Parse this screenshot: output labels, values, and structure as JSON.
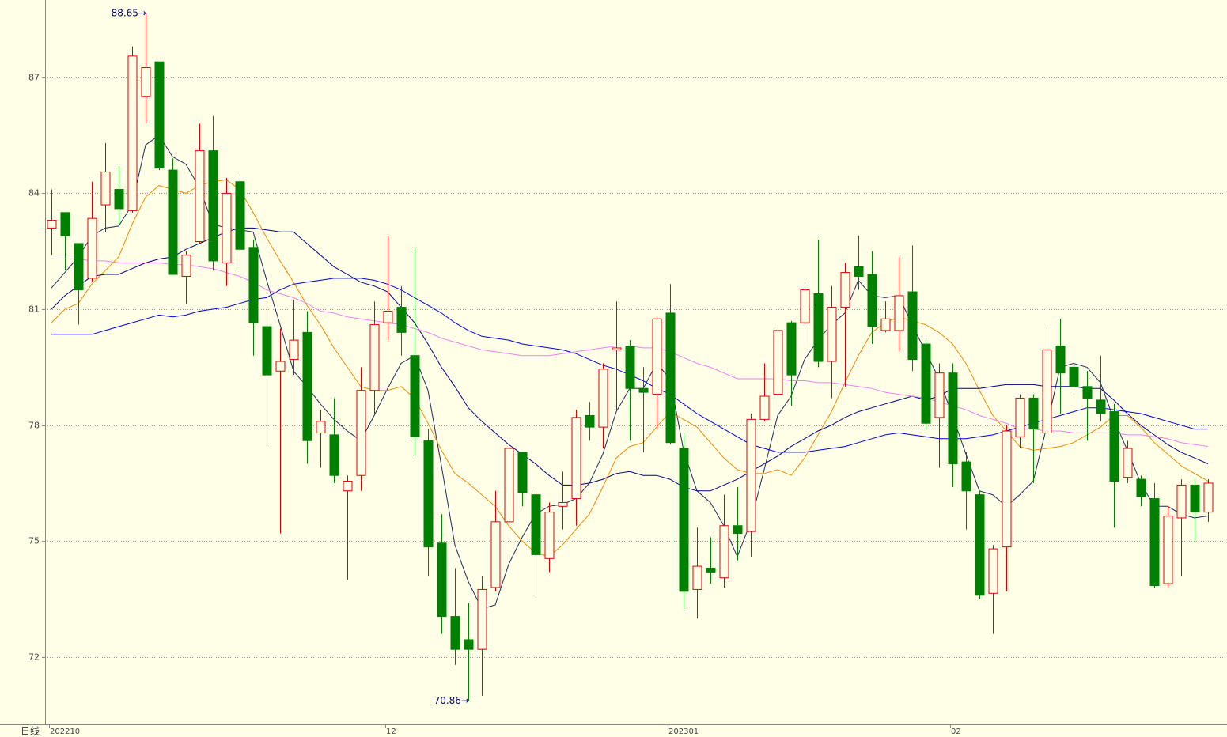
{
  "chart_data": {
    "type": "candlestick",
    "period_label": "日线",
    "categories": [
      "202210",
      null,
      null,
      null,
      null,
      null,
      null,
      null,
      null,
      null,
      null,
      null,
      null,
      null,
      null,
      null,
      null,
      null,
      null,
      null,
      null,
      null,
      null,
      null,
      null,
      "12",
      null,
      null,
      null,
      null,
      null,
      null,
      null,
      null,
      null,
      null,
      null,
      null,
      null,
      null,
      null,
      null,
      null,
      null,
      null,
      null,
      "202301",
      null,
      null,
      null,
      null,
      null,
      null,
      null,
      null,
      null,
      null,
      null,
      null,
      null,
      null,
      null,
      null,
      null,
      null,
      null,
      null,
      "02",
      null,
      null,
      null,
      null,
      null,
      null,
      null,
      null,
      null,
      null,
      null,
      null,
      null,
      null,
      null,
      null,
      null,
      null,
      null
    ],
    "open": [
      83.1,
      83.5,
      82.7,
      81.8,
      83.7,
      84.1,
      83.55,
      86.5,
      87.4,
      84.6,
      81.85,
      82.75,
      85.1,
      82.2,
      84.3,
      82.6,
      80.55,
      79.4,
      79.7,
      80.4,
      77.8,
      77.75,
      76.3,
      76.7,
      78.9,
      80.65,
      81.05,
      79.8,
      77.6,
      74.95,
      73.05,
      72.45,
      72.2,
      73.8,
      75.5,
      77.3,
      76.2,
      74.55,
      75.9,
      76.1,
      78.25,
      77.95,
      79.95,
      80.05,
      78.95,
      78.8,
      80.9,
      77.4,
      73.75,
      74.3,
      74.05,
      75.4,
      75.25,
      78.15,
      78.8,
      80.65,
      80.65,
      81.4,
      79.65,
      81.05,
      82.1,
      81.9,
      80.45,
      80.45,
      81.45,
      80.1,
      78.2,
      79.35,
      77.05,
      76.2,
      73.65,
      74.85,
      77.7,
      78.7,
      77.8,
      80.05,
      79.5,
      79.0,
      78.65,
      78.35,
      76.65,
      76.6,
      76.1,
      73.9,
      75.6,
      76.45,
      75.75
    ],
    "high": [
      84.1,
      83.5,
      82.7,
      84.3,
      85.3,
      84.7,
      87.8,
      88.65,
      87.4,
      84.9,
      82.5,
      85.8,
      86.0,
      84.4,
      84.5,
      82.8,
      81.2,
      80.5,
      81.25,
      80.95,
      78.4,
      78.7,
      76.7,
      79.5,
      81.2,
      82.9,
      81.6,
      82.6,
      77.9,
      75.7,
      74.3,
      73.4,
      74.1,
      76.3,
      77.6,
      77.3,
      76.3,
      76.0,
      76.8,
      78.4,
      78.6,
      79.6,
      81.2,
      80.2,
      79.5,
      80.8,
      81.65,
      77.8,
      75.35,
      75.1,
      76.2,
      76.4,
      78.3,
      79.6,
      80.6,
      80.7,
      81.7,
      82.8,
      81.6,
      82.2,
      82.9,
      82.5,
      81.2,
      82.35,
      82.65,
      80.2,
      79.6,
      79.6,
      77.3,
      76.3,
      74.9,
      78.0,
      78.8,
      78.8,
      80.6,
      80.75,
      79.55,
      79.4,
      79.8,
      78.55,
      77.6,
      76.7,
      76.5,
      75.9,
      76.6,
      76.6,
      76.6
    ],
    "low": [
      82.4,
      82.0,
      80.6,
      81.7,
      83.0,
      83.2,
      83.5,
      85.8,
      84.6,
      81.9,
      81.15,
      82.7,
      82.0,
      81.6,
      82.0,
      79.8,
      77.4,
      75.2,
      79.3,
      77.0,
      76.9,
      76.5,
      74.0,
      76.3,
      78.3,
      80.2,
      79.8,
      77.2,
      74.1,
      72.6,
      71.8,
      70.86,
      71.0,
      73.7,
      75.0,
      75.9,
      73.6,
      74.2,
      75.3,
      75.4,
      77.6,
      77.4,
      78.4,
      77.6,
      77.3,
      77.9,
      77.5,
      73.25,
      73.0,
      73.9,
      73.8,
      74.5,
      74.6,
      78.1,
      78.2,
      78.5,
      79.4,
      79.5,
      78.7,
      79.0,
      81.5,
      80.1,
      80.4,
      79.9,
      79.4,
      77.9,
      76.9,
      76.4,
      75.3,
      73.5,
      72.6,
      73.7,
      77.4,
      76.5,
      77.6,
      78.3,
      78.75,
      77.6,
      78.1,
      75.35,
      76.5,
      75.9,
      73.8,
      73.8,
      74.1,
      75.0,
      75.5
    ],
    "close": [
      83.3,
      82.9,
      81.5,
      83.35,
      84.55,
      83.6,
      87.55,
      87.25,
      84.65,
      81.9,
      82.4,
      85.1,
      82.25,
      84.0,
      82.55,
      80.65,
      79.3,
      79.65,
      80.2,
      77.6,
      78.1,
      76.7,
      76.55,
      78.9,
      80.6,
      80.95,
      80.4,
      77.7,
      74.85,
      73.05,
      72.2,
      72.2,
      73.75,
      75.5,
      77.4,
      76.25,
      74.65,
      75.75,
      76.0,
      78.2,
      77.95,
      79.45,
      80.0,
      78.95,
      78.85,
      80.75,
      77.55,
      73.7,
      74.35,
      74.2,
      75.4,
      75.2,
      78.15,
      78.75,
      80.45,
      79.3,
      81.5,
      79.65,
      81.05,
      81.95,
      81.85,
      80.55,
      80.75,
      81.35,
      79.7,
      78.05,
      79.35,
      77.0,
      76.3,
      73.6,
      74.8,
      77.85,
      78.7,
      77.9,
      79.95,
      79.35,
      79.0,
      78.7,
      78.3,
      76.55,
      77.4,
      76.15,
      73.85,
      75.65,
      76.45,
      75.75,
      76.5
    ],
    "up_color": "#e00000",
    "down_color": "#008000",
    "series": [
      {
        "color": "#1c2b5a",
        "values": [
          81.55,
          81.95,
          82.35,
          82.9,
          83.1,
          83.15,
          83.7,
          85.25,
          85.5,
          84.95,
          84.75,
          84.15,
          83.2,
          83.1,
          83.05,
          83.0,
          81.75,
          80.6,
          79.4,
          79.0,
          78.55,
          78.15,
          77.85,
          77.6,
          78.25,
          78.95,
          79.6,
          79.8,
          78.9,
          76.95,
          74.9,
          73.95,
          73.25,
          73.35,
          74.4,
          75.1,
          75.7,
          75.9,
          75.95,
          76.1,
          76.5,
          77.25,
          78.35,
          78.95,
          78.95,
          79.6,
          79.2,
          77.35,
          76.3,
          76.0,
          75.4,
          74.6,
          75.5,
          76.85,
          78.25,
          78.75,
          79.7,
          80.2,
          80.6,
          80.9,
          81.75,
          81.35,
          81.3,
          81.35,
          80.6,
          79.9,
          79.2,
          78.25,
          77.25,
          76.3,
          76.2,
          75.9,
          76.2,
          76.55,
          77.95,
          79.5,
          79.6,
          79.5,
          79.1,
          78.15,
          77.35,
          76.5,
          75.9,
          75.9,
          75.7,
          75.6,
          75.65
        ]
      },
      {
        "color": "#f08a00",
        "values": [
          80.65,
          81.0,
          81.15,
          81.65,
          82.0,
          82.35,
          83.2,
          83.9,
          84.2,
          84.1,
          84.0,
          84.2,
          84.3,
          84.35,
          84.1,
          83.5,
          82.85,
          82.25,
          81.7,
          81.1,
          80.6,
          80.0,
          79.5,
          79.0,
          78.9,
          78.9,
          79.0,
          78.7,
          78.05,
          77.35,
          76.75,
          76.5,
          76.2,
          75.9,
          75.4,
          75.0,
          74.7,
          74.6,
          74.9,
          75.3,
          75.7,
          76.4,
          77.15,
          77.45,
          77.55,
          77.95,
          78.35,
          78.15,
          77.95,
          77.55,
          77.15,
          76.85,
          76.75,
          76.75,
          76.85,
          76.7,
          77.15,
          77.75,
          78.35,
          79.1,
          79.8,
          80.4,
          80.65,
          80.8,
          80.7,
          80.6,
          80.4,
          80.1,
          79.6,
          78.9,
          78.25,
          77.85,
          77.45,
          77.35,
          77.4,
          77.45,
          77.55,
          77.75,
          77.95,
          78.25,
          78.25,
          77.95,
          77.55,
          77.25,
          76.95,
          76.75,
          76.55
        ]
      },
      {
        "color": "#000080",
        "values": [
          81.0,
          81.35,
          81.6,
          81.85,
          81.9,
          81.9,
          82.05,
          82.2,
          82.3,
          82.35,
          82.55,
          82.7,
          82.85,
          83.0,
          83.1,
          83.1,
          83.05,
          83.0,
          83.0,
          82.7,
          82.4,
          82.1,
          81.9,
          81.7,
          81.6,
          81.45,
          81.05,
          80.65,
          80.1,
          79.5,
          79.0,
          78.45,
          78.1,
          77.8,
          77.5,
          77.25,
          77.0,
          76.7,
          76.45,
          76.45,
          76.5,
          76.6,
          76.75,
          76.8,
          76.7,
          76.7,
          76.6,
          76.4,
          76.3,
          76.3,
          76.45,
          76.6,
          76.8,
          77.0,
          77.2,
          77.45,
          77.65,
          77.85,
          78.0,
          78.2,
          78.35,
          78.45,
          78.55,
          78.65,
          78.75,
          78.65,
          78.75,
          78.95,
          78.95,
          78.95,
          79.0,
          79.05,
          79.05,
          79.05,
          79.0,
          79.0,
          79.0,
          78.95,
          78.95,
          78.65,
          78.3,
          78.0,
          77.75,
          77.5,
          77.3,
          77.15,
          77.0
        ]
      },
      {
        "color": "#0000e0",
        "values": [
          80.35,
          80.35,
          80.35,
          80.35,
          80.45,
          80.55,
          80.65,
          80.75,
          80.85,
          80.8,
          80.85,
          80.95,
          81.0,
          81.05,
          81.15,
          81.25,
          81.3,
          81.5,
          81.65,
          81.7,
          81.75,
          81.8,
          81.8,
          81.8,
          81.75,
          81.65,
          81.5,
          81.3,
          81.1,
          80.9,
          80.65,
          80.45,
          80.3,
          80.25,
          80.2,
          80.1,
          80.05,
          80.0,
          79.95,
          79.85,
          79.7,
          79.55,
          79.45,
          79.3,
          79.15,
          78.95,
          78.8,
          78.55,
          78.3,
          78.1,
          77.9,
          77.7,
          77.5,
          77.4,
          77.3,
          77.3,
          77.3,
          77.35,
          77.4,
          77.45,
          77.55,
          77.65,
          77.75,
          77.8,
          77.75,
          77.7,
          77.65,
          77.65,
          77.65,
          77.7,
          77.75,
          77.85,
          77.95,
          78.05,
          78.15,
          78.25,
          78.35,
          78.45,
          78.45,
          78.4,
          78.35,
          78.3,
          78.2,
          78.1,
          78.0,
          77.9,
          77.9
        ]
      },
      {
        "color": "#ee82ee",
        "values": [
          82.3,
          82.3,
          82.3,
          82.25,
          82.25,
          82.2,
          82.2,
          82.2,
          82.2,
          82.15,
          82.15,
          82.1,
          82.05,
          81.95,
          81.85,
          81.7,
          81.5,
          81.4,
          81.3,
          81.15,
          80.95,
          80.9,
          80.8,
          80.75,
          80.7,
          80.65,
          80.6,
          80.5,
          80.4,
          80.25,
          80.15,
          80.05,
          79.95,
          79.9,
          79.85,
          79.8,
          79.8,
          79.8,
          79.85,
          79.9,
          79.95,
          80.0,
          80.05,
          80.05,
          80.0,
          80.0,
          79.9,
          79.75,
          79.6,
          79.5,
          79.35,
          79.2,
          79.2,
          79.2,
          79.2,
          79.15,
          79.15,
          79.1,
          79.1,
          79.05,
          79.0,
          78.95,
          78.85,
          78.8,
          78.75,
          78.7,
          78.6,
          78.5,
          78.4,
          78.25,
          78.15,
          78.05,
          77.9,
          77.9,
          77.85,
          77.85,
          77.8,
          77.8,
          77.8,
          77.8,
          77.75,
          77.75,
          77.7,
          77.65,
          77.55,
          77.5,
          77.45
        ]
      }
    ],
    "annotations": [
      {
        "value": 88.65,
        "label": "88.65→"
      },
      {
        "value": 70.86,
        "label": "70.86→"
      }
    ],
    "ylim": [
      70.26,
      89.0
    ],
    "yticks": [
      72,
      75,
      78,
      81,
      84,
      87
    ],
    "grid": true
  }
}
